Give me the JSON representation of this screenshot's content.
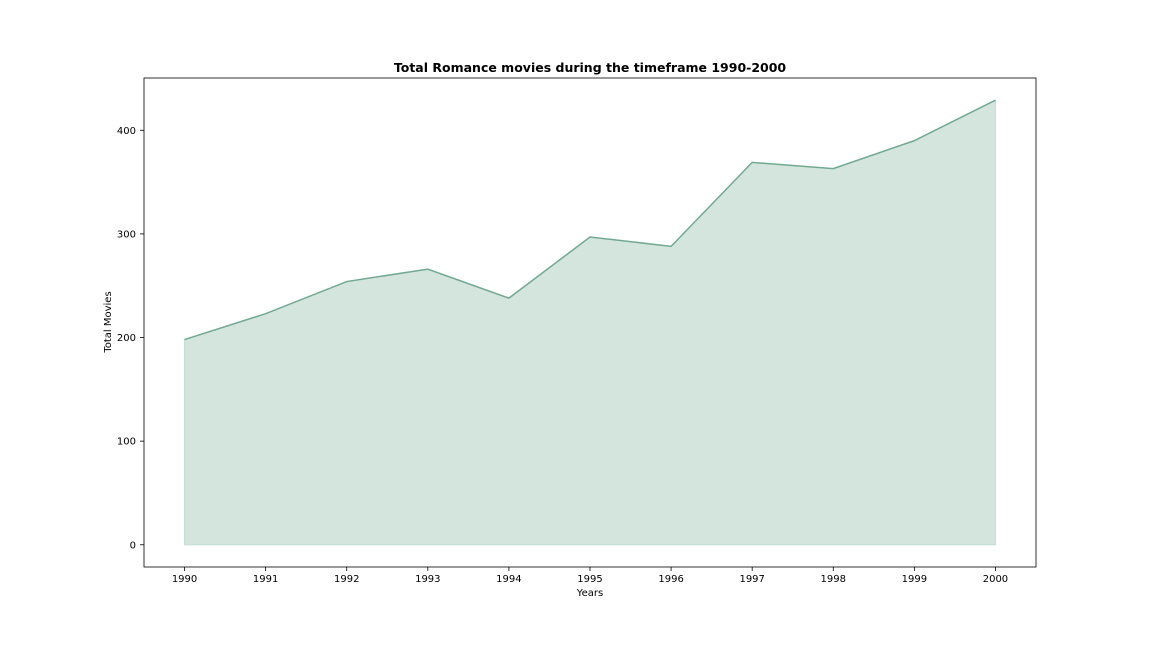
{
  "chart_data": {
    "type": "area",
    "title": "Total Romance movies during the timeframe 1990-2000",
    "xlabel": "Years",
    "ylabel": "Total Movies",
    "x": [
      1990,
      1991,
      1992,
      1993,
      1994,
      1995,
      1996,
      1997,
      1998,
      1999,
      2000
    ],
    "series": [
      {
        "values": [
          198,
          223,
          254,
          266,
          238,
          297,
          288,
          369,
          363,
          390,
          429
        ]
      }
    ],
    "yticks": [
      0,
      100,
      200,
      300,
      400
    ],
    "xlim": [
      1989.5,
      2000.5
    ],
    "ylim": [
      -21.45,
      450.45
    ],
    "grid": false,
    "colors": {
      "line": "#72a991",
      "fill": "#d4e5de",
      "fill_edge": "#c3dcd5"
    }
  }
}
